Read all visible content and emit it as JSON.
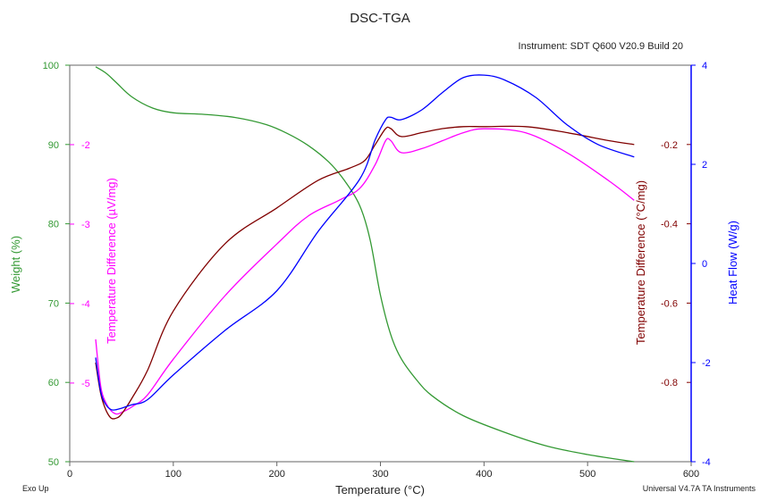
{
  "chart_data": {
    "type": "line",
    "title": "DSC-TGA",
    "subtitle": "Instrument: SDT Q600 V20.9 Build 20",
    "xlabel": "Temperature (°C)",
    "xlim": [
      0,
      600
    ],
    "x_ticks": [
      0,
      100,
      200,
      300,
      400,
      500,
      600
    ],
    "footer_left": "Exo Up",
    "footer_right": "Universal V4.7A TA Instruments",
    "grid": false,
    "legend": "none",
    "axes": {
      "weight": {
        "label": "Weight (%)",
        "color": "#339933",
        "lim": [
          50,
          100
        ],
        "ticks": [
          50,
          60,
          70,
          80,
          90,
          100
        ]
      },
      "tdiff_uv": {
        "label": "Temperature Difference (µV/mg)",
        "color": "#ff00ff",
        "lim": [
          -5.99,
          -1
        ],
        "ticks": [
          -5,
          -4,
          -3,
          -2
        ]
      },
      "tdiff_c": {
        "label": "Temperature Difference (°C/mg)",
        "color": "#800000",
        "lim": [
          -1.0,
          0.0
        ],
        "ticks": [
          -0.8,
          -0.6,
          -0.4,
          -0.2
        ]
      },
      "heatflow": {
        "label": "Heat Flow (W/g)",
        "color": "#0000ff",
        "lim": [
          -4,
          4
        ],
        "ticks": [
          -4,
          -2,
          0,
          2,
          4
        ]
      }
    },
    "series": [
      {
        "axis": "weight",
        "color": "#339933",
        "x": [
          25,
          35,
          45,
          60,
          80,
          100,
          130,
          160,
          190,
          210,
          230,
          250,
          265,
          280,
          290,
          300,
          310,
          320,
          335,
          350,
          380,
          420,
          460,
          500,
          545
        ],
        "y": [
          99.8,
          99.0,
          97.8,
          96.0,
          94.6,
          94.0,
          93.8,
          93.4,
          92.5,
          91.4,
          89.9,
          87.8,
          85.5,
          82.3,
          78.0,
          71.0,
          66.0,
          63.0,
          60.3,
          58.3,
          55.8,
          53.7,
          52.0,
          50.9,
          50.0
        ]
      },
      {
        "axis": "tdiff_uv",
        "color": "#ff00ff",
        "x": [
          25,
          30,
          35,
          40,
          45,
          50,
          60,
          75,
          100,
          150,
          200,
          230,
          260,
          280,
          295,
          305,
          310,
          320,
          340,
          360,
          380,
          400,
          440,
          480,
          520,
          545
        ],
        "y": [
          -4.45,
          -5.05,
          -5.25,
          -5.35,
          -5.39,
          -5.37,
          -5.3,
          -5.15,
          -4.7,
          -3.9,
          -3.25,
          -2.9,
          -2.7,
          -2.55,
          -2.25,
          -1.95,
          -1.95,
          -2.1,
          -2.05,
          -1.95,
          -1.85,
          -1.8,
          -1.85,
          -2.1,
          -2.45,
          -2.7
        ]
      },
      {
        "axis": "tdiff_c",
        "color": "#800000",
        "x": [
          25,
          30,
          35,
          40,
          45,
          50,
          60,
          75,
          100,
          150,
          200,
          240,
          270,
          285,
          295,
          305,
          310,
          320,
          340,
          360,
          380,
          400,
          440,
          480,
          520,
          545
        ],
        "y": [
          -0.75,
          -0.83,
          -0.87,
          -0.89,
          -0.89,
          -0.88,
          -0.84,
          -0.77,
          -0.62,
          -0.45,
          -0.36,
          -0.29,
          -0.26,
          -0.24,
          -0.2,
          -0.16,
          -0.16,
          -0.18,
          -0.17,
          -0.16,
          -0.155,
          -0.155,
          -0.155,
          -0.17,
          -0.19,
          -0.2
        ]
      },
      {
        "axis": "heatflow",
        "color": "#0000ff",
        "x": [
          25,
          30,
          35,
          40,
          45,
          50,
          60,
          75,
          100,
          150,
          200,
          240,
          280,
          295,
          305,
          310,
          320,
          340,
          360,
          380,
          400,
          420,
          450,
          480,
          510,
          545
        ],
        "y": [
          -1.9,
          -2.6,
          -2.85,
          -2.95,
          -2.95,
          -2.92,
          -2.85,
          -2.75,
          -2.25,
          -1.35,
          -0.55,
          0.65,
          1.7,
          2.5,
          2.9,
          2.95,
          2.9,
          3.1,
          3.45,
          3.75,
          3.8,
          3.7,
          3.35,
          2.8,
          2.4,
          2.15
        ]
      }
    ]
  }
}
